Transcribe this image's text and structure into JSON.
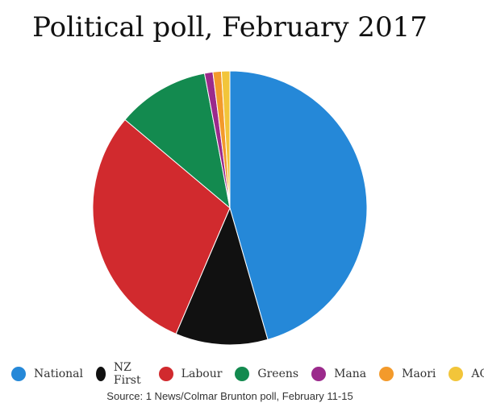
{
  "chart_data": {
    "type": "pie",
    "title": "Political poll, February 2017",
    "source": "Source: 1 News/Colmar Brunton poll, February 11-15",
    "legend_position": "bottom",
    "slices": [
      {
        "label": "National",
        "value": 46,
        "color": "#2588d8"
      },
      {
        "label": "NZ First",
        "value": 11,
        "color": "#111111"
      },
      {
        "label": "Labour",
        "value": 30,
        "color": "#d12a2e"
      },
      {
        "label": "Greens",
        "value": 11,
        "color": "#138a4f"
      },
      {
        "label": "Mana",
        "value": 1,
        "color": "#9b2a8c"
      },
      {
        "label": "Maori",
        "value": 1,
        "color": "#f39a2b"
      },
      {
        "label": "ACT",
        "value": 1,
        "color": "#f2c53a"
      }
    ]
  }
}
